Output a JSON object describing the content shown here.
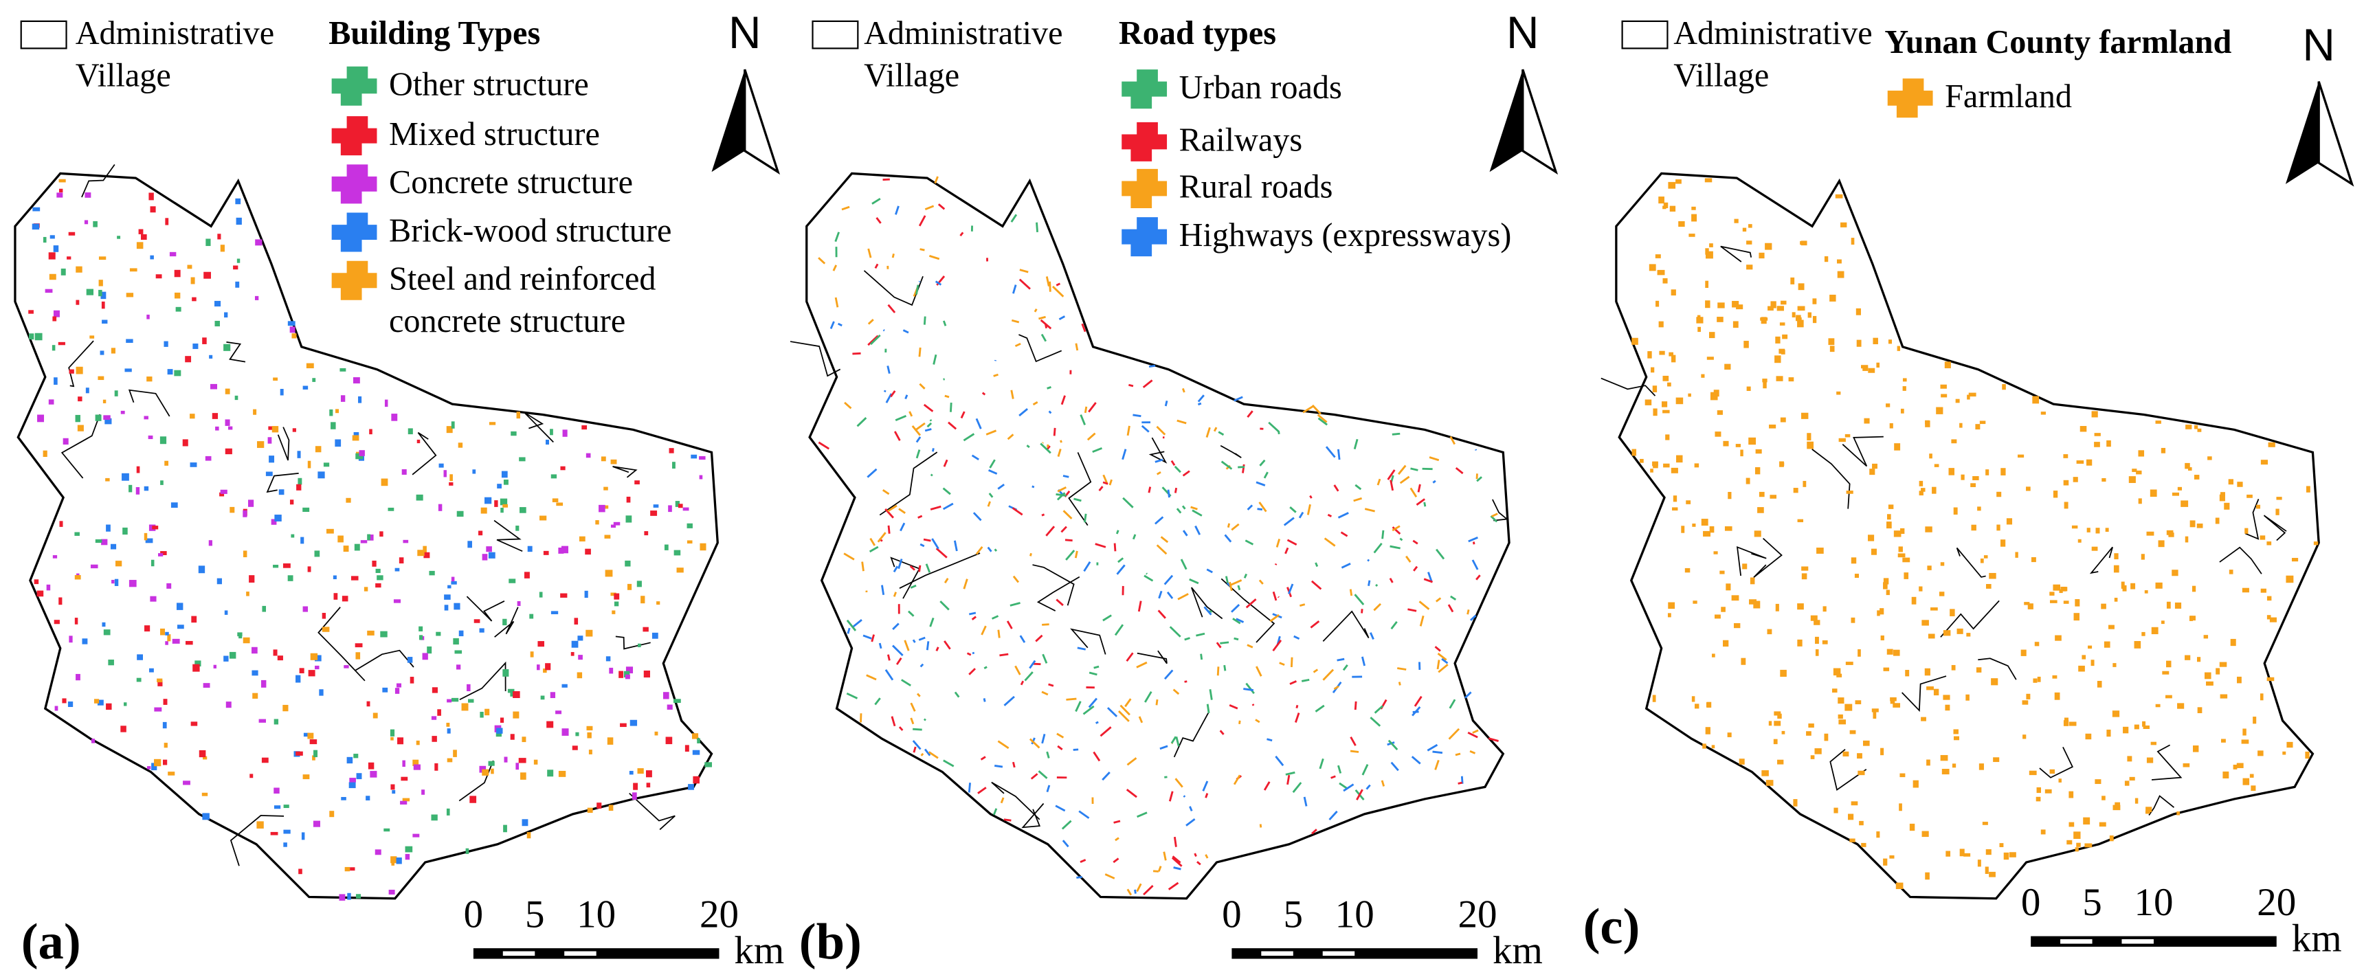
{
  "panels": [
    {
      "label": "(a)",
      "village_legend": [
        "Administrative",
        "Village"
      ],
      "legend": {
        "title": "Building Types",
        "items": [
          {
            "lines": [
              "Other structure"
            ],
            "color": "#3cb371"
          },
          {
            "lines": [
              "Mixed structure"
            ],
            "color": "#ee1c2e"
          },
          {
            "lines": [
              "Concrete structure"
            ],
            "color": "#c832e0"
          },
          {
            "lines": [
              "Brick-wood structure"
            ],
            "color": "#2a7ff0"
          },
          {
            "lines": [
              "Steel and reinforced",
              "concrete structure"
            ],
            "color": "#f7a21b"
          }
        ]
      },
      "north": "N",
      "scale": {
        "ticks": [
          "0",
          "5",
          "10",
          "20"
        ],
        "unit": "km"
      }
    },
    {
      "label": "(b)",
      "village_legend": [
        "Administrative",
        "Village"
      ],
      "legend": {
        "title": "Road types",
        "items": [
          {
            "lines": [
              "Urban roads"
            ],
            "color": "#3cb371"
          },
          {
            "lines": [
              "Railways"
            ],
            "color": "#ee1c2e"
          },
          {
            "lines": [
              "Rural roads"
            ],
            "color": "#f7a21b"
          },
          {
            "lines": [
              "Highways (expressways)"
            ],
            "color": "#2a7ff0"
          }
        ]
      },
      "north": "N",
      "scale": {
        "ticks": [
          "0",
          "5",
          "10",
          "20"
        ],
        "unit": "km"
      }
    },
    {
      "label": "(c)",
      "village_legend": [
        "Administrative",
        "Village"
      ],
      "legend": {
        "title": "Yunan County farmland",
        "items": [
          {
            "lines": [
              "Farmland"
            ],
            "color": "#f7a21b"
          }
        ]
      },
      "north": "N",
      "scale": {
        "ticks": [
          "0",
          "5",
          "10",
          "20"
        ],
        "unit": "km"
      }
    }
  ]
}
